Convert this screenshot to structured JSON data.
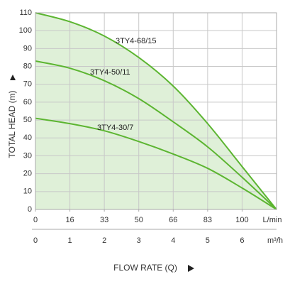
{
  "chart_data": {
    "type": "line",
    "y_label": "TOTAL HEAD (m)",
    "x_label": "FLOW RATE (Q)",
    "x_unit_top": "L/min",
    "x_unit_bottom": "m³/h",
    "x": [
      0,
      1,
      2,
      3,
      4,
      5,
      6,
      7
    ],
    "series": [
      {
        "name": "3TY4-68/15",
        "color": "#5cb531",
        "values": [
          110,
          105,
          97,
          85,
          69,
          48,
          24,
          0
        ]
      },
      {
        "name": "3TY4-50/11",
        "color": "#5cb531",
        "values": [
          83,
          79,
          72,
          62,
          49,
          35,
          18,
          0
        ]
      },
      {
        "name": "3TY4-30/7",
        "color": "#5cb531",
        "values": [
          51,
          48,
          44,
          38,
          31,
          23,
          12,
          0
        ]
      }
    ],
    "fill_color": "#dff0d8",
    "xlim": [
      0,
      7
    ],
    "ylim": [
      0,
      110
    ],
    "xticks": [
      0,
      1,
      2,
      3,
      4,
      5,
      6
    ],
    "x2ticks": [
      {
        "value": 0,
        "label": "0"
      },
      {
        "value": 1,
        "label": "16"
      },
      {
        "value": 2,
        "label": "33"
      },
      {
        "value": 3,
        "label": "50"
      },
      {
        "value": 4,
        "label": "66"
      },
      {
        "value": 5,
        "label": "83"
      },
      {
        "value": 6,
        "label": "100"
      }
    ],
    "yticks": [
      0,
      10,
      20,
      30,
      40,
      50,
      60,
      70,
      80,
      90,
      100,
      110
    ],
    "grid": true
  }
}
